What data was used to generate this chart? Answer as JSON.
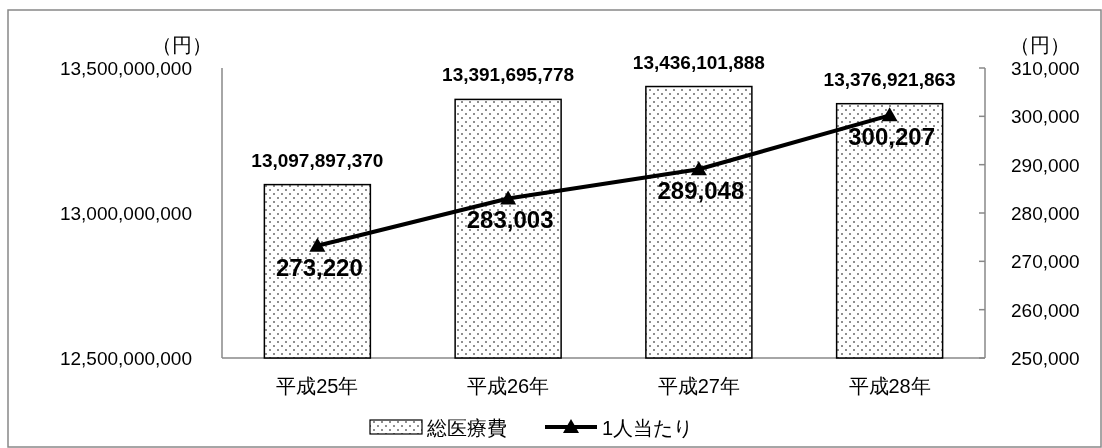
{
  "chart_data": {
    "type": "bar",
    "ylabel": "（円）",
    "y2label": "（円）",
    "categories": [
      "平成25年",
      "平成26年",
      "平成27年",
      "平成28年"
    ],
    "series": [
      {
        "name": "総医療費",
        "color": "#ffffff",
        "values": [
          13097897370,
          13391695778,
          13436101888,
          13376921863
        ],
        "value_labels": [
          "13,097,897,370",
          "13,391,695,778",
          "13,436,101,888",
          "13,376,921,863"
        ]
      },
      {
        "name": "1人当たり",
        "type": "line",
        "axis": "y2",
        "color": "#000000",
        "marker": "triangle",
        "values": [
          273220,
          283003,
          289048,
          300207
        ],
        "value_labels": [
          "273,220",
          "283,003",
          "289,048",
          "300,207"
        ]
      }
    ],
    "ylim": [
      12500000000,
      13500000000
    ],
    "yticks": [
      {
        "value": 12500000000,
        "label": "12,500,000,000"
      },
      {
        "value": 13000000000,
        "label": "13,000,000,000"
      },
      {
        "value": 13500000000,
        "label": "13,500,000,000"
      }
    ],
    "y2lim": [
      250000,
      310000
    ],
    "y2ticks": [
      {
        "value": 250000,
        "label": "250,000"
      },
      {
        "value": 260000,
        "label": "260,000"
      },
      {
        "value": 270000,
        "label": "270,000"
      },
      {
        "value": 280000,
        "label": "280,000"
      },
      {
        "value": 290000,
        "label": "290,000"
      },
      {
        "value": 300000,
        "label": "300,000"
      },
      {
        "value": 310000,
        "label": "310,000"
      }
    ],
    "grid": false,
    "legend": "bottom"
  }
}
